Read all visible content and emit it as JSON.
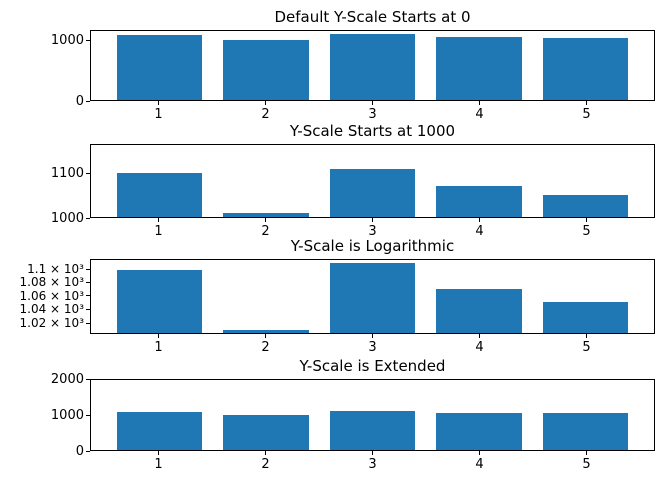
{
  "figure": {
    "background": "#ffffff",
    "bar_color": "#1f77b4",
    "axis_color": "#000000",
    "text_color": "#000000"
  },
  "chart_data": [
    {
      "type": "bar",
      "title": "Default Y-Scale Starts at 0",
      "x": [
        1,
        2,
        3,
        4,
        5
      ],
      "categories": [
        "1",
        "2",
        "3",
        "4",
        "5"
      ],
      "values": [
        1100,
        1010,
        1110,
        1070,
        1050
      ],
      "bar_width": 0.8,
      "xlim": [
        0.36,
        5.64
      ],
      "yscale": "linear",
      "ylim": [
        0,
        1165
      ],
      "yticks": [
        {
          "value": 0,
          "label": "0"
        },
        {
          "value": 1000,
          "label": "1000"
        }
      ],
      "legend": "none",
      "grid": false
    },
    {
      "type": "bar",
      "title": "Y-Scale Starts at 1000",
      "x": [
        1,
        2,
        3,
        4,
        5
      ],
      "categories": [
        "1",
        "2",
        "3",
        "4",
        "5"
      ],
      "values": [
        1100,
        1010,
        1110,
        1070,
        1050
      ],
      "bar_width": 0.8,
      "xlim": [
        0.36,
        5.64
      ],
      "yscale": "linear",
      "ylim": [
        1000,
        1165
      ],
      "yticks": [
        {
          "value": 1000,
          "label": "1000"
        },
        {
          "value": 1100,
          "label": "1100"
        }
      ],
      "legend": "none",
      "grid": false
    },
    {
      "type": "bar",
      "title": "Y-Scale is Logarithmic",
      "x": [
        1,
        2,
        3,
        4,
        5
      ],
      "categories": [
        "1",
        "2",
        "3",
        "4",
        "5"
      ],
      "values": [
        1100,
        1010,
        1110,
        1070,
        1050
      ],
      "bar_width": 0.8,
      "xlim": [
        0.36,
        5.64
      ],
      "yscale": "log",
      "ylim": [
        1005.2,
        1115.5
      ],
      "yticks": [
        {
          "value": 1020,
          "label": "1.02 × 10³"
        },
        {
          "value": 1040,
          "label": "1.04 × 10³"
        },
        {
          "value": 1060,
          "label": "1.06 × 10³"
        },
        {
          "value": 1080,
          "label": "1.08 × 10³"
        },
        {
          "value": 1100,
          "label": "1.1 × 10³"
        }
      ],
      "legend": "none",
      "grid": false
    },
    {
      "type": "bar",
      "title": "Y-Scale is Extended",
      "x": [
        1,
        2,
        3,
        4,
        5
      ],
      "categories": [
        "1",
        "2",
        "3",
        "4",
        "5"
      ],
      "values": [
        1100,
        1010,
        1110,
        1070,
        1050
      ],
      "bar_width": 0.8,
      "xlim": [
        0.36,
        5.64
      ],
      "yscale": "linear",
      "ylim": [
        0,
        2000
      ],
      "yticks": [
        {
          "value": 0,
          "label": "0"
        },
        {
          "value": 1000,
          "label": "1000"
        },
        {
          "value": 2000,
          "label": "2000"
        }
      ],
      "legend": "none",
      "grid": false
    }
  ]
}
